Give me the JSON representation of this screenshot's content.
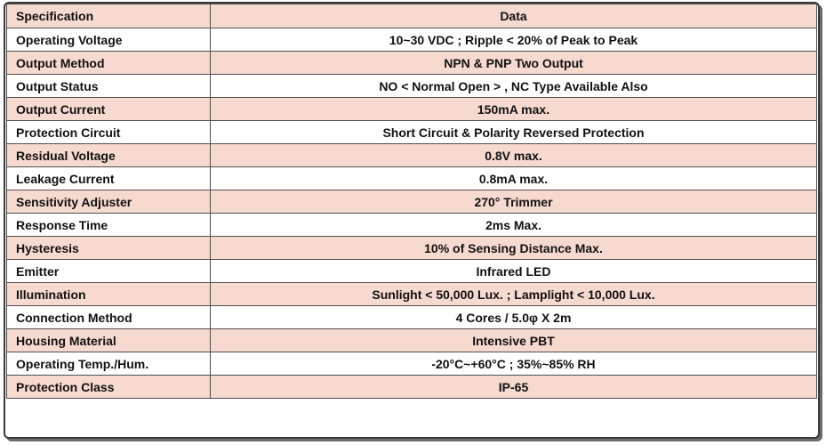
{
  "table": {
    "header": {
      "key": "Specification",
      "value": "Data"
    },
    "rows": [
      {
        "key": "Operating Voltage",
        "value": "10~30 VDC ; Ripple < 20% of Peak to Peak"
      },
      {
        "key": "Output Method",
        "value": "NPN & PNP Two Output"
      },
      {
        "key": "Output Status",
        "value": "NO < Normal Open > , NC Type Available Also"
      },
      {
        "key": "Output Current",
        "value": "150mA max."
      },
      {
        "key": "Protection Circuit",
        "value": "Short Circuit & Polarity Reversed Protection"
      },
      {
        "key": "Residual Voltage",
        "value": "0.8V max."
      },
      {
        "key": "Leakage Current",
        "value": "0.8mA max."
      },
      {
        "key": "Sensitivity Adjuster",
        "value": "270°   Trimmer"
      },
      {
        "key": "Response Time",
        "value": "2ms Max."
      },
      {
        "key": "Hysteresis",
        "value": "10% of Sensing Distance Max."
      },
      {
        "key": "Emitter",
        "value": "Infrared LED"
      },
      {
        "key": "Illumination",
        "value": "Sunlight < 50,000 Lux. ; Lamplight < 10,000 Lux."
      },
      {
        "key": "Connection Method",
        "value": "4 Cores / 5.0φ X 2m"
      },
      {
        "key": "Housing Material",
        "value": "Intensive PBT"
      },
      {
        "key": "Operating Temp./Hum.",
        "value": "-20°C~+60°C ; 35%~85% RH"
      },
      {
        "key": "Protection Class",
        "value": "IP-65"
      }
    ]
  },
  "colors": {
    "shaded_row": "#f6d9cf",
    "plain_row": "#ffffff",
    "border": "#505050"
  }
}
